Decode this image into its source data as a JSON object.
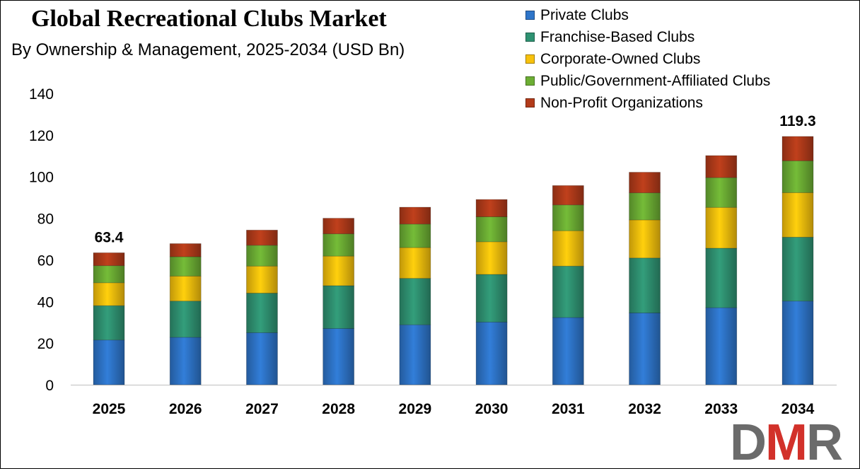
{
  "colors": {
    "private": "#2e75c9",
    "franchise": "#2f9272",
    "corporate": "#f7c10c",
    "public": "#6cae34",
    "nonprofit": "#b23b1a"
  },
  "logo": {
    "text_d": "D",
    "text_m": "M",
    "text_r": "R"
  },
  "chart_data": {
    "type": "bar",
    "stacked": true,
    "title": "Global Recreational Clubs Market",
    "subtitle": "By Ownership & Management, 2025-2034 (USD Bn)",
    "xlabel": "",
    "ylabel": "",
    "ylim": [
      0,
      140
    ],
    "yticks": [
      0,
      20,
      40,
      60,
      80,
      100,
      120,
      140
    ],
    "grid": false,
    "legend_position": "top-right",
    "categories": [
      "2025",
      "2026",
      "2027",
      "2028",
      "2029",
      "2030",
      "2031",
      "2032",
      "2033",
      "2034"
    ],
    "series": [
      {
        "name": "Private Clubs",
        "color_key": "private",
        "values": [
          21.5,
          22.8,
          25.0,
          27.0,
          28.8,
          30.1,
          32.3,
          34.5,
          37.0,
          40.2
        ]
      },
      {
        "name": "Franchise-Based Clubs",
        "color_key": "franchise",
        "values": [
          16.5,
          17.4,
          19.0,
          20.6,
          22.3,
          22.9,
          24.7,
          26.4,
          28.6,
          30.7
        ]
      },
      {
        "name": "Corporate-Owned Clubs",
        "color_key": "corporate",
        "values": [
          11.0,
          12.0,
          13.0,
          14.2,
          14.8,
          15.7,
          17.0,
          18.3,
          19.6,
          21.4
        ]
      },
      {
        "name": "Public/Government-Affiliated Clubs",
        "color_key": "public",
        "values": [
          8.2,
          9.3,
          10.0,
          10.7,
          11.3,
          12.0,
          12.4,
          13.0,
          14.3,
          15.3
        ]
      },
      {
        "name": "Non-Profit Organizations",
        "color_key": "nonprofit",
        "values": [
          6.2,
          6.3,
          7.3,
          7.5,
          8.1,
          8.3,
          9.3,
          9.9,
          10.6,
          11.7
        ]
      }
    ],
    "annotations": [
      {
        "category": "2025",
        "text": "63.4"
      },
      {
        "category": "2034",
        "text": "119.3"
      }
    ]
  }
}
